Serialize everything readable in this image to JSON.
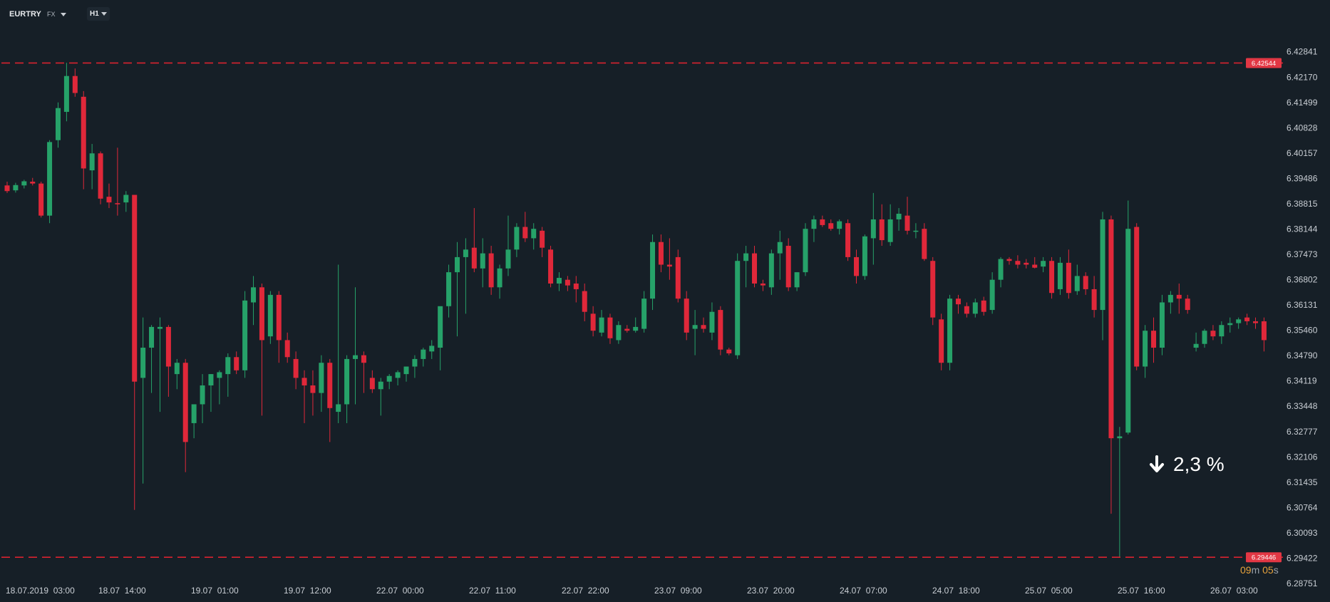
{
  "toolbar": {
    "symbol": "EURTRY",
    "market": "FX",
    "timeframe": "H1"
  },
  "change": {
    "text": "2,3 %",
    "direction": "down"
  },
  "countdown": {
    "minutes": "09",
    "min_unit": "m",
    "seconds": "05",
    "sec_unit": "s"
  },
  "colors": {
    "background": "#161f27",
    "up": "#26a269",
    "down": "#e0283a",
    "level_line": "#d9232f",
    "text": "#c9ced4"
  },
  "chart_data": {
    "type": "candlestick",
    "symbol": "EURTRY",
    "timeframe": "H1",
    "ylim": [
      6.28751,
      6.43176
    ],
    "y_ticks": [
      "6.42841",
      "6.42170",
      "6.41499",
      "6.40828",
      "6.40157",
      "6.39486",
      "6.38815",
      "6.38144",
      "6.37473",
      "6.36802",
      "6.36131",
      "6.35460",
      "6.34790",
      "6.34119",
      "6.33448",
      "6.32777",
      "6.32106",
      "6.31435",
      "6.30764",
      "6.30093",
      "6.29422",
      "6.28751"
    ],
    "x_ticks": [
      "18.07.2019  03:00",
      "18.07  14:00",
      "19.07  01:00",
      "19.07  12:00",
      "22.07  00:00",
      "22.07  11:00",
      "22.07  22:00",
      "23.07  09:00",
      "23.07  20:00",
      "24.07  07:00",
      "24.07  18:00",
      "25.07  05:00",
      "25.07  16:00",
      "26.07  03:00"
    ],
    "levels": [
      {
        "value": 6.42544,
        "label": "6.42544"
      },
      {
        "value": 6.29446,
        "label": "6.29446"
      }
    ],
    "candles": [
      [
        6.393,
        6.394,
        6.391,
        6.3915
      ],
      [
        6.3917,
        6.3937,
        6.3911,
        6.3931
      ],
      [
        6.393,
        6.3945,
        6.3922,
        6.3941
      ],
      [
        6.394,
        6.395,
        6.393,
        6.3935
      ],
      [
        6.3935,
        6.394,
        6.3845,
        6.385
      ],
      [
        6.385,
        6.405,
        6.383,
        6.4045
      ],
      [
        6.405,
        6.415,
        6.403,
        6.4135
      ],
      [
        6.4125,
        6.4255,
        6.41,
        6.422
      ],
      [
        6.422,
        6.424,
        6.4165,
        6.4175
      ],
      [
        6.4165,
        6.418,
        6.392,
        6.3975
      ],
      [
        6.397,
        6.404,
        6.392,
        6.4015
      ],
      [
        6.4015,
        6.402,
        6.388,
        6.3895
      ],
      [
        6.39,
        6.3935,
        6.387,
        6.3885
      ],
      [
        6.3883,
        6.403,
        6.385,
        6.388
      ],
      [
        6.3885,
        6.3915,
        6.386,
        6.3905
      ],
      [
        6.3905,
        6.3905,
        6.307,
        6.341
      ],
      [
        6.342,
        6.358,
        6.314,
        6.35
      ],
      [
        6.35,
        6.356,
        6.338,
        6.3555
      ],
      [
        6.355,
        6.358,
        6.333,
        6.3555
      ],
      [
        6.3555,
        6.356,
        6.337,
        6.345
      ],
      [
        6.343,
        6.347,
        6.339,
        6.346
      ],
      [
        6.346,
        6.347,
        6.317,
        6.325
      ],
      [
        6.33,
        6.335,
        6.326,
        6.335
      ],
      [
        6.335,
        6.343,
        6.33,
        6.34
      ],
      [
        6.34,
        6.343,
        6.333,
        6.343
      ],
      [
        6.342,
        6.344,
        6.335,
        6.3435
      ],
      [
        6.343,
        6.3485,
        6.337,
        6.3475
      ],
      [
        6.3475,
        6.349,
        6.343,
        6.344
      ],
      [
        6.344,
        6.365,
        6.342,
        6.3625
      ],
      [
        6.362,
        6.369,
        6.356,
        6.366
      ],
      [
        6.366,
        6.367,
        6.332,
        6.352
      ],
      [
        6.353,
        6.365,
        6.351,
        6.364
      ],
      [
        6.364,
        6.365,
        6.346,
        6.352
      ],
      [
        6.352,
        6.354,
        6.346,
        6.3475
      ],
      [
        6.347,
        6.349,
        6.339,
        6.342
      ],
      [
        6.342,
        6.344,
        6.33,
        6.34
      ],
      [
        6.34,
        6.344,
        6.332,
        6.338
      ],
      [
        6.338,
        6.348,
        6.333,
        6.346
      ],
      [
        6.346,
        6.347,
        6.325,
        6.334
      ],
      [
        6.333,
        6.372,
        6.33,
        6.335
      ],
      [
        6.335,
        6.348,
        6.33,
        6.347
      ],
      [
        6.347,
        6.366,
        6.335,
        6.348
      ],
      [
        6.348,
        6.349,
        6.338,
        6.346
      ],
      [
        6.342,
        6.344,
        6.338,
        6.339
      ],
      [
        6.339,
        6.342,
        6.332,
        6.341
      ],
      [
        6.341,
        6.343,
        6.339,
        6.3425
      ],
      [
        6.342,
        6.344,
        6.34,
        6.3435
      ],
      [
        6.343,
        6.345,
        6.341,
        6.345
      ],
      [
        6.345,
        6.348,
        6.342,
        6.347
      ],
      [
        6.347,
        6.35,
        6.345,
        6.3495
      ],
      [
        6.349,
        6.352,
        6.347,
        6.3505
      ],
      [
        6.35,
        6.36,
        6.344,
        6.361
      ],
      [
        6.361,
        6.372,
        6.358,
        6.37
      ],
      [
        6.37,
        6.378,
        6.353,
        6.374
      ],
      [
        6.374,
        6.379,
        6.359,
        6.376
      ],
      [
        6.3765,
        6.387,
        6.37,
        6.371
      ],
      [
        6.371,
        6.379,
        6.366,
        6.375
      ],
      [
        6.375,
        6.377,
        6.364,
        6.366
      ],
      [
        6.366,
        6.372,
        6.363,
        6.371
      ],
      [
        6.371,
        6.385,
        6.369,
        6.376
      ],
      [
        6.376,
        6.383,
        6.374,
        6.382
      ],
      [
        6.382,
        6.386,
        6.378,
        6.379
      ],
      [
        6.379,
        6.383,
        6.376,
        6.3815
      ],
      [
        6.381,
        6.382,
        6.374,
        6.3765
      ],
      [
        6.376,
        6.377,
        6.366,
        6.367
      ],
      [
        6.367,
        6.37,
        6.365,
        6.3685
      ],
      [
        6.368,
        6.369,
        6.365,
        6.3665
      ],
      [
        6.367,
        6.369,
        6.362,
        6.3655
      ],
      [
        6.365,
        6.367,
        6.357,
        6.3595
      ],
      [
        6.359,
        6.361,
        6.353,
        6.3545
      ],
      [
        6.354,
        6.36,
        6.353,
        6.358
      ],
      [
        6.358,
        6.359,
        6.351,
        6.3525
      ],
      [
        6.352,
        6.357,
        6.351,
        6.356
      ],
      [
        6.355,
        6.356,
        6.354,
        6.3545
      ],
      [
        6.3545,
        6.358,
        6.354,
        6.3555
      ],
      [
        6.355,
        6.365,
        6.354,
        6.363
      ],
      [
        6.363,
        6.38,
        6.36,
        6.378
      ],
      [
        6.378,
        6.38,
        6.37,
        6.372
      ],
      [
        6.372,
        6.379,
        6.368,
        6.3715
      ],
      [
        6.374,
        6.376,
        6.362,
        6.363
      ],
      [
        6.363,
        6.365,
        6.352,
        6.354
      ],
      [
        6.355,
        6.36,
        6.348,
        6.356
      ],
      [
        6.356,
        6.358,
        6.354,
        6.355
      ],
      [
        6.354,
        6.362,
        6.352,
        6.3595
      ],
      [
        6.36,
        6.361,
        6.348,
        6.3495
      ],
      [
        6.3495,
        6.35,
        6.348,
        6.3485
      ],
      [
        6.348,
        6.375,
        6.347,
        6.373
      ],
      [
        6.373,
        6.377,
        6.366,
        6.375
      ],
      [
        6.375,
        6.377,
        6.366,
        6.367
      ],
      [
        6.367,
        6.368,
        6.365,
        6.3665
      ],
      [
        6.366,
        6.376,
        6.364,
        6.375
      ],
      [
        6.375,
        6.381,
        6.368,
        6.378
      ],
      [
        6.377,
        6.379,
        6.365,
        6.366
      ],
      [
        6.366,
        6.37,
        6.365,
        6.37
      ],
      [
        6.37,
        6.383,
        6.369,
        6.3815
      ],
      [
        6.3815,
        6.385,
        6.378,
        6.384
      ],
      [
        6.384,
        6.385,
        6.382,
        6.3825
      ],
      [
        6.383,
        6.384,
        6.381,
        6.3815
      ],
      [
        6.3815,
        6.384,
        6.38,
        6.3835
      ],
      [
        6.383,
        6.384,
        6.373,
        6.374
      ],
      [
        6.374,
        6.376,
        6.367,
        6.369
      ],
      [
        6.369,
        6.38,
        6.368,
        6.3795
      ],
      [
        6.379,
        6.391,
        6.372,
        6.384
      ],
      [
        6.384,
        6.388,
        6.377,
        6.3785
      ],
      [
        6.378,
        6.388,
        6.377,
        6.384
      ],
      [
        6.384,
        6.387,
        6.381,
        6.3855
      ],
      [
        6.385,
        6.39,
        6.38,
        6.381
      ],
      [
        6.381,
        6.383,
        6.379,
        6.381
      ],
      [
        6.3815,
        6.383,
        6.373,
        6.3735
      ],
      [
        6.373,
        6.374,
        6.356,
        6.358
      ],
      [
        6.3575,
        6.359,
        6.344,
        6.346
      ],
      [
        6.346,
        6.364,
        6.344,
        6.363
      ],
      [
        6.363,
        6.364,
        6.359,
        6.3615
      ],
      [
        6.361,
        6.362,
        6.358,
        6.359
      ],
      [
        6.359,
        6.363,
        6.358,
        6.362
      ],
      [
        6.3625,
        6.3635,
        6.3585,
        6.3595
      ],
      [
        6.36,
        6.37,
        6.359,
        6.368
      ],
      [
        6.368,
        6.374,
        6.366,
        6.3735
      ],
      [
        6.3735,
        6.374,
        6.372,
        6.373
      ],
      [
        6.373,
        6.3745,
        6.371,
        6.372
      ],
      [
        6.3725,
        6.3735,
        6.371,
        6.372
      ],
      [
        6.372,
        6.374,
        6.371,
        6.3712
      ],
      [
        6.3715,
        6.374,
        6.37,
        6.373
      ],
      [
        6.373,
        6.374,
        6.363,
        6.3645
      ],
      [
        6.3655,
        6.374,
        6.364,
        6.3725
      ],
      [
        6.3725,
        6.376,
        6.363,
        6.3645
      ],
      [
        6.365,
        6.372,
        6.364,
        6.369
      ],
      [
        6.369,
        6.37,
        6.364,
        6.3655
      ],
      [
        6.3655,
        6.369,
        6.358,
        6.36
      ],
      [
        6.36,
        6.386,
        6.352,
        6.384
      ],
      [
        6.384,
        6.385,
        6.306,
        6.326
      ],
      [
        6.326,
        6.329,
        6.2944,
        6.3265
      ],
      [
        6.3275,
        6.389,
        6.327,
        6.3815
      ],
      [
        6.382,
        6.383,
        6.344,
        6.345
      ],
      [
        6.345,
        6.356,
        6.342,
        6.3545
      ],
      [
        6.3545,
        6.358,
        6.346,
        6.35
      ],
      [
        6.35,
        6.364,
        6.348,
        6.362
      ],
      [
        6.362,
        6.365,
        6.359,
        6.364
      ],
      [
        6.364,
        6.367,
        6.359,
        6.363
      ],
      [
        6.363,
        6.364,
        6.359,
        6.36
      ],
      [
        6.35,
        6.354,
        6.349,
        6.351
      ],
      [
        6.351,
        6.355,
        6.35,
        6.3545
      ],
      [
        6.3545,
        6.356,
        6.352,
        6.353
      ],
      [
        6.353,
        6.357,
        6.351,
        6.356
      ],
      [
        6.356,
        6.358,
        6.354,
        6.3565
      ],
      [
        6.3565,
        6.358,
        6.355,
        6.3575
      ],
      [
        6.358,
        6.359,
        6.356,
        6.357
      ],
      [
        6.357,
        6.358,
        6.355,
        6.3565
      ],
      [
        6.357,
        6.358,
        6.349,
        6.352
      ]
    ]
  }
}
